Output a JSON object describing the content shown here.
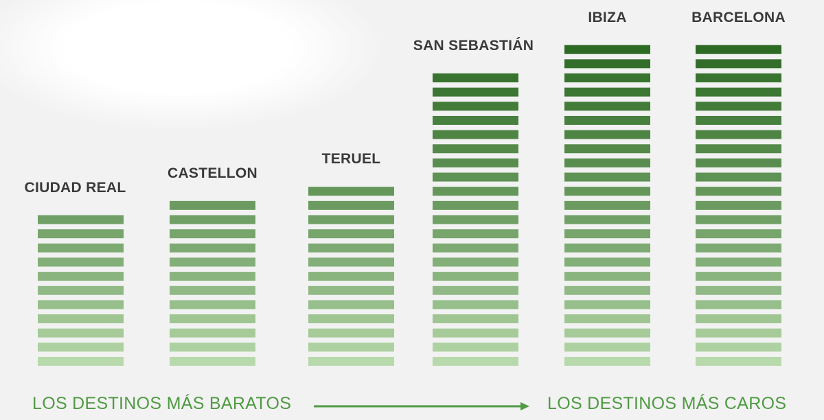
{
  "chart_data": {
    "type": "bar",
    "categories": [
      "CIUDAD REAL",
      "CASTELLON",
      "TERUEL",
      "SAN SEBASTIÁN",
      "IBIZA",
      "BARCELONA"
    ],
    "values": [
      11,
      12,
      13,
      21,
      23,
      23
    ],
    "title": "",
    "xlabel": "",
    "ylabel": "",
    "grid": false,
    "colors": {
      "light": "#b8d9ab",
      "dark": "#2d6a24",
      "text": "#3a3a3a",
      "accent": "#4f9a43"
    }
  },
  "footer": {
    "left": "LOS DESTINOS MÁS BARATOS",
    "right": "LOS DESTINOS MÁS CAROS"
  }
}
